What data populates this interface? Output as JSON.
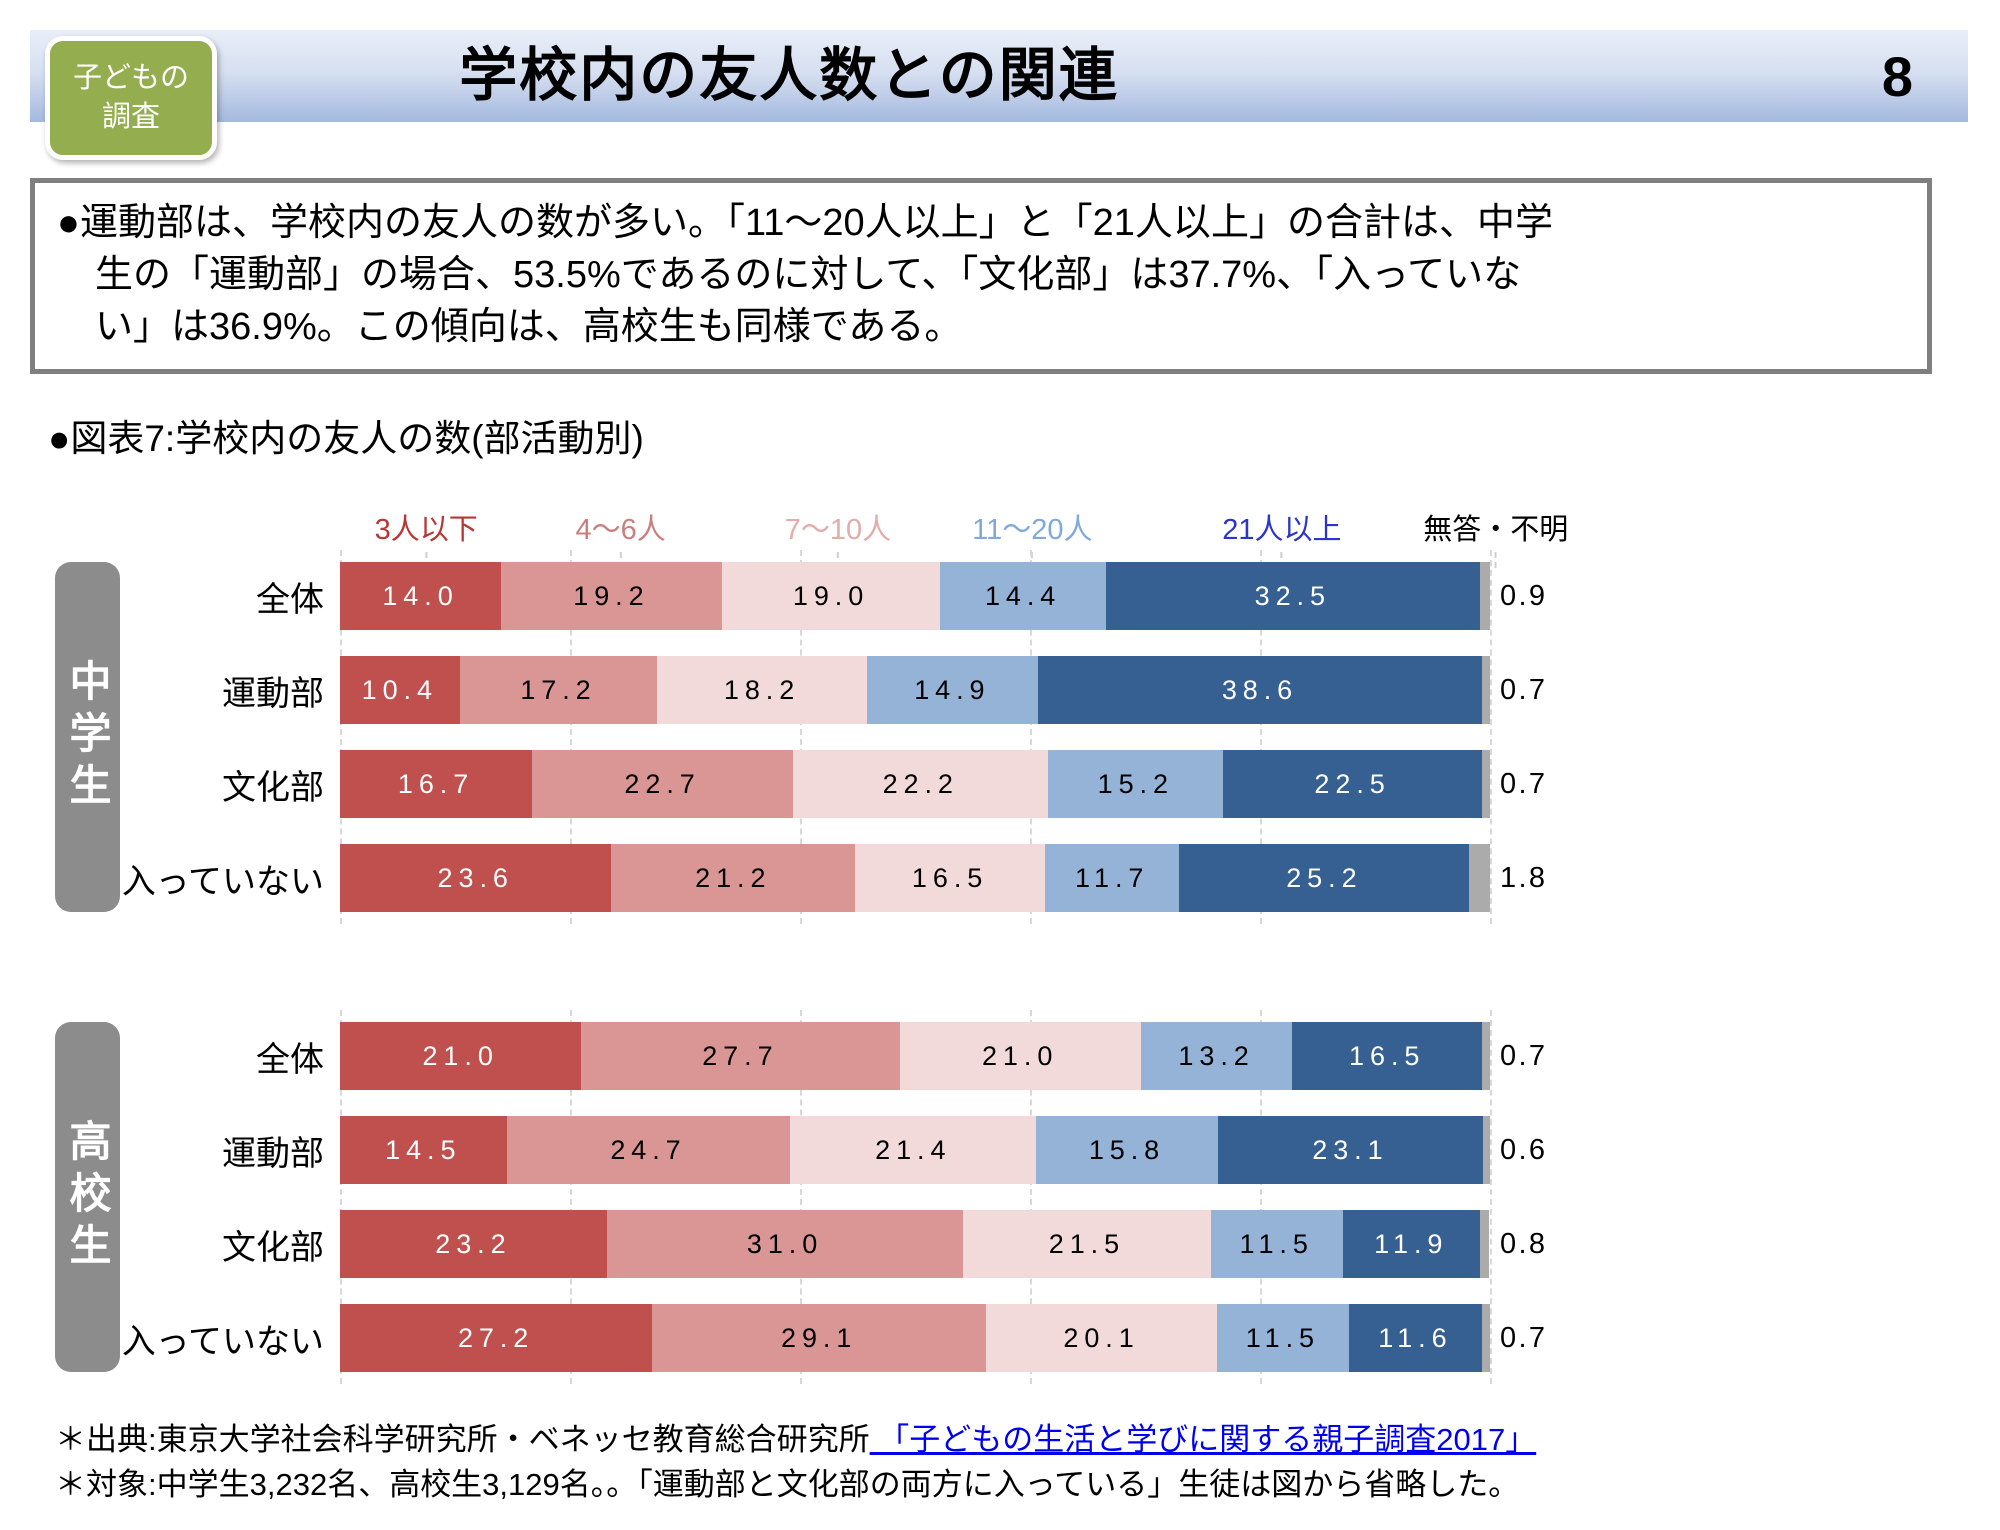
{
  "brand": "ベネッセ教育総合研究所",
  "header": {
    "badge_line1": "子どもの",
    "badge_line2": "調査",
    "title": "学校内の友人数との関連",
    "page_number": "8"
  },
  "summary": {
    "line1": "●運動部は、学校内の友人の数が多い。「11〜20人以上」と「21人以上」の合計は、中学",
    "line2": "生の「運動部」の場合、53.5%であるのに対して、「文化部」は37.7%、「入っていな",
    "line3": "い」は36.9%。この傾向は、高校生も同様である。"
  },
  "figure": {
    "caption": "●図表7:学校内の友人の数(部活動別)"
  },
  "chart_data": {
    "type": "bar",
    "subtype": "horizontal-stacked",
    "title": "図表7:学校内の友人の数(部活動別)",
    "unit": "%",
    "xlim": [
      0,
      100
    ],
    "grid": "dashed-vertical",
    "gridline_step_pct": 20,
    "legend_position": "top",
    "categories": [
      "3人以下",
      "4〜6人",
      "7〜10人",
      "11〜20人",
      "21人以上",
      "無答・不明"
    ],
    "category_colors": [
      "#C0504D",
      "#D99694",
      "#F1DAD9",
      "#95B3D7",
      "#376092",
      "#ABABAB"
    ],
    "legend_text_colors": [
      "#B63733",
      "#C97F7D",
      "#E3ACAB",
      "#7FA9DB",
      "#2B35C8",
      "#000000"
    ],
    "legend_positions_pct": [
      7.5,
      24.4,
      43.3,
      60.2,
      81.9,
      100.5
    ],
    "value_text_colors": [
      "#FFFFFF",
      "#000000",
      "#000000",
      "#000000",
      "#FFFFFF"
    ],
    "groups": [
      {
        "name": "中学生",
        "rows": [
          {
            "label": "全体",
            "values": [
              14.0,
              19.2,
              19.0,
              14.4,
              32.5,
              0.9
            ]
          },
          {
            "label": "運動部",
            "values": [
              10.4,
              17.2,
              18.2,
              14.9,
              38.6,
              0.7
            ]
          },
          {
            "label": "文化部",
            "values": [
              16.7,
              22.7,
              22.2,
              15.2,
              22.5,
              0.7
            ]
          },
          {
            "label": "入っていない",
            "values": [
              23.6,
              21.2,
              16.5,
              11.7,
              25.2,
              1.8
            ]
          }
        ]
      },
      {
        "name": "高校生",
        "rows": [
          {
            "label": "全体",
            "values": [
              21.0,
              27.7,
              21.0,
              13.2,
              16.5,
              0.7
            ]
          },
          {
            "label": "運動部",
            "values": [
              14.5,
              24.7,
              21.4,
              15.8,
              23.1,
              0.6
            ]
          },
          {
            "label": "文化部",
            "values": [
              23.2,
              31.0,
              21.5,
              11.5,
              11.9,
              0.8
            ]
          },
          {
            "label": "入っていない",
            "values": [
              27.2,
              29.1,
              20.1,
              11.5,
              11.6,
              0.7
            ]
          }
        ]
      }
    ]
  },
  "footer": {
    "source_prefix": "＊出典:東京大学社会科学研究所・ベネッセ教育総合研究所",
    "source_link": " 「子どもの生活と学びに関する親子調査2017」 ",
    "subjects": "＊対象:中学生3,232名、高校生3,129名。。「運動部と文化部の両方に入っている」生徒は図から省略した。"
  }
}
